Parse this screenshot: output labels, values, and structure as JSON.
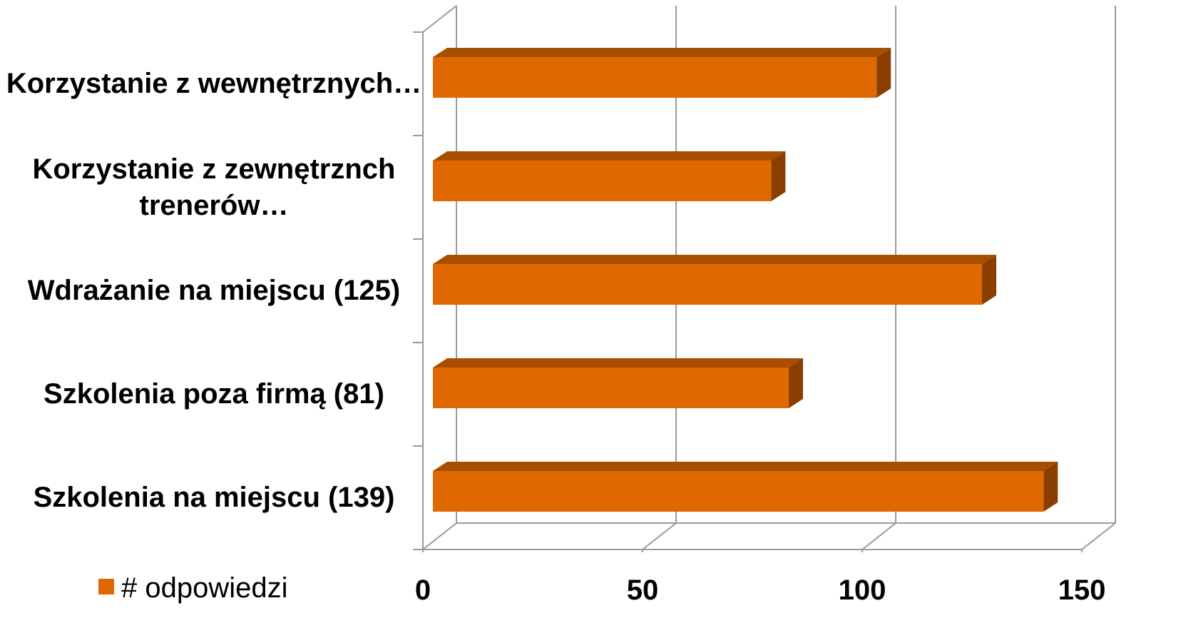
{
  "chart_data": {
    "type": "bar3d",
    "categories": [
      "Szkolenia na miejscu (139)",
      "Szkolenia poza firmą (81)",
      "Wdrażanie na miejscu (125)",
      "Korzystanie z zewnętrznch trenerów…",
      "Korzystanie z wewnętrznych…"
    ],
    "series": [
      {
        "name": "# odpowiedzi",
        "color": "#e06800",
        "values": [
          139,
          81,
          125,
          77,
          101
        ]
      }
    ],
    "xlim": [
      0,
      150
    ],
    "xticks": [
      0,
      50,
      100,
      150
    ],
    "grid": true,
    "legend": "bottom-left"
  }
}
